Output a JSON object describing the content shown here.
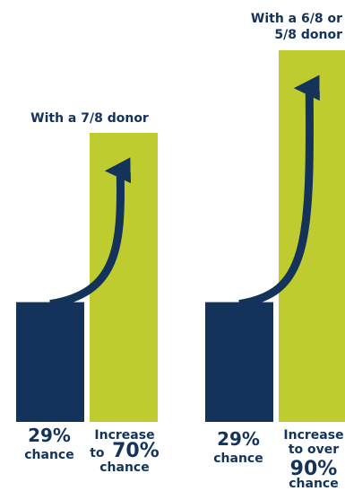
{
  "colors": {
    "navy": "#14335a",
    "lime": "#bfcc30",
    "bg": "#ffffff"
  },
  "chart_data": [
    {
      "type": "bar",
      "grid": false,
      "ylim": [
        0,
        100
      ],
      "categories": [
        "29% chance",
        "Increase to 70% chance"
      ],
      "values": [
        29,
        70
      ],
      "bar_colors": [
        "#14335a",
        "#bfcc30"
      ],
      "annotation": "With a 7/8 donor",
      "tick_labels": [
        {
          "pct": "29%",
          "rest": "chance"
        },
        {
          "pre": "Increase",
          "mid_prefix": "to",
          "pct": "70%",
          "rest": "chance"
        }
      ]
    },
    {
      "type": "bar",
      "grid": false,
      "ylim": [
        0,
        100
      ],
      "categories": [
        "29% chance",
        "Increase to over 90% chance"
      ],
      "values": [
        29,
        90
      ],
      "bar_colors": [
        "#14335a",
        "#bfcc30"
      ],
      "annotation": "With a 6/8 or 5/8 donor",
      "annotation_lines": [
        "With a 6/8 or",
        "5/8 donor"
      ],
      "tick_labels": [
        {
          "pct": "29%",
          "rest": "chance"
        },
        {
          "pre": "Increase",
          "mid": "to over",
          "pct": "90%",
          "rest": "chance"
        }
      ]
    }
  ]
}
